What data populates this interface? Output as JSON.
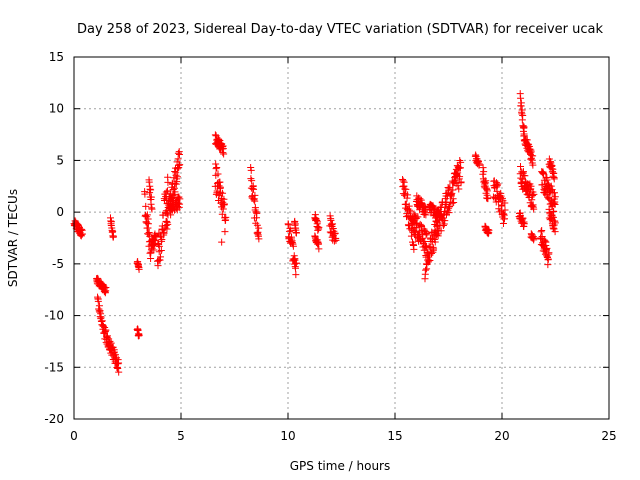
{
  "chart_data": {
    "type": "scatter",
    "title": "Day 258 of 2023, Sidereal Day-to-day VTEC variation (SDTVAR) for receiver ucak",
    "xlabel": "GPS time / hours",
    "ylabel": "SDTVAR / TECUs",
    "xlim": [
      0,
      25
    ],
    "ylim": [
      -20,
      15
    ],
    "xticks": [
      0,
      5,
      10,
      15,
      20,
      25
    ],
    "yticks": [
      -20,
      -15,
      -10,
      -5,
      0,
      5,
      10,
      15
    ],
    "grid": true,
    "marker": "+",
    "color": "#ff0000",
    "segments": [
      {
        "x": [
          0.0,
          0.4
        ],
        "y": [
          -1.0,
          -2.2
        ],
        "spread": 0.4
      },
      {
        "x": [
          1.05,
          1.2
        ],
        "y": [
          -6.5,
          -7.0
        ],
        "spread": 0.3
      },
      {
        "x": [
          1.2,
          1.5
        ],
        "y": [
          -7.0,
          -7.6
        ],
        "spread": 0.3
      },
      {
        "x": [
          1.1,
          1.4
        ],
        "y": [
          -8.5,
          -11.5
        ],
        "spread": 0.5
      },
      {
        "x": [
          1.4,
          2.1
        ],
        "y": [
          -11.5,
          -15.0
        ],
        "spread": 0.6
      },
      {
        "x": [
          1.7,
          1.85
        ],
        "y": [
          -0.5,
          -2.6
        ],
        "spread": 0.3
      },
      {
        "x": [
          2.95,
          3.05
        ],
        "y": [
          -4.8,
          -5.4
        ],
        "spread": 0.2
      },
      {
        "x": [
          2.95,
          3.05
        ],
        "y": [
          -11.2,
          -12.2
        ],
        "spread": 0.3
      },
      {
        "x": [
          3.3,
          3.6
        ],
        "y": [
          1.2,
          -4.0
        ],
        "spread": 1.2
      },
      {
        "x": [
          3.5,
          3.65
        ],
        "y": [
          3.0,
          0.5
        ],
        "spread": 0.6
      },
      {
        "x": [
          3.6,
          3.85
        ],
        "y": [
          -3.5,
          -2.5
        ],
        "spread": 0.7
      },
      {
        "x": [
          3.9,
          4.4
        ],
        "y": [
          -4.5,
          2.0
        ],
        "spread": 1.8
      },
      {
        "x": [
          4.3,
          4.95
        ],
        "y": [
          -1.0,
          5.2
        ],
        "spread": 1.2
      },
      {
        "x": [
          4.5,
          4.95
        ],
        "y": [
          0.3,
          1.0
        ],
        "spread": 0.6
      },
      {
        "x": [
          6.6,
          7.0
        ],
        "y": [
          7.0,
          6.0
        ],
        "spread": 0.5
      },
      {
        "x": [
          6.6,
          7.1
        ],
        "y": [
          3.5,
          -1.0
        ],
        "spread": 1.5
      },
      {
        "x": [
          8.25,
          8.65
        ],
        "y": [
          3.6,
          -2.8
        ],
        "spread": 1.3
      },
      {
        "x": [
          10.0,
          10.4
        ],
        "y": [
          -1.3,
          -5.8
        ],
        "spread": 1.0
      },
      {
        "x": [
          10.3,
          10.4
        ],
        "y": [
          -1.0,
          -2.0
        ],
        "spread": 0.4
      },
      {
        "x": [
          11.25,
          11.45
        ],
        "y": [
          -0.2,
          -1.8
        ],
        "spread": 0.5
      },
      {
        "x": [
          11.25,
          11.45
        ],
        "y": [
          -2.5,
          -3.3
        ],
        "spread": 0.3
      },
      {
        "x": [
          11.95,
          12.25
        ],
        "y": [
          -1.0,
          -3.0
        ],
        "spread": 0.8
      },
      {
        "x": [
          15.35,
          15.9
        ],
        "y": [
          2.5,
          -2.5
        ],
        "spread": 1.4
      },
      {
        "x": [
          15.8,
          16.5
        ],
        "y": [
          -0.8,
          -3.0
        ],
        "spread": 1.2
      },
      {
        "x": [
          16.0,
          16.45
        ],
        "y": [
          1.2,
          0.0
        ],
        "spread": 0.6
      },
      {
        "x": [
          16.4,
          17.0
        ],
        "y": [
          -5.8,
          -0.8
        ],
        "spread": 1.3
      },
      {
        "x": [
          16.6,
          17.1
        ],
        "y": [
          0.5,
          -0.5
        ],
        "spread": 0.5
      },
      {
        "x": [
          16.95,
          18.1
        ],
        "y": [
          -1.5,
          4.0
        ],
        "spread": 1.4
      },
      {
        "x": [
          18.75,
          18.95
        ],
        "y": [
          5.3,
          4.6
        ],
        "spread": 0.3
      },
      {
        "x": [
          19.1,
          19.35
        ],
        "y": [
          3.8,
          1.2
        ],
        "spread": 0.7
      },
      {
        "x": [
          19.2,
          19.4
        ],
        "y": [
          -1.4,
          -2.0
        ],
        "spread": 0.3
      },
      {
        "x": [
          19.6,
          20.15
        ],
        "y": [
          2.6,
          -0.4
        ],
        "spread": 1.3
      },
      {
        "x": [
          20.85,
          21.05
        ],
        "y": [
          11.1,
          7.5
        ],
        "spread": 0.5
      },
      {
        "x": [
          21.0,
          21.45
        ],
        "y": [
          7.5,
          5.0
        ],
        "spread": 0.5
      },
      {
        "x": [
          20.85,
          21.5
        ],
        "y": [
          3.6,
          1.0
        ],
        "spread": 1.0
      },
      {
        "x": [
          20.8,
          21.05
        ],
        "y": [
          -0.2,
          -1.2
        ],
        "spread": 0.4
      },
      {
        "x": [
          21.35,
          21.5
        ],
        "y": [
          -2.2,
          -2.6
        ],
        "spread": 0.2
      },
      {
        "x": [
          21.8,
          22.2
        ],
        "y": [
          -2.0,
          -4.7
        ],
        "spread": 0.9
      },
      {
        "x": [
          21.85,
          22.5
        ],
        "y": [
          3.2,
          0.8
        ],
        "spread": 1.1
      },
      {
        "x": [
          22.2,
          22.45
        ],
        "y": [
          5.0,
          3.5
        ],
        "spread": 0.4
      },
      {
        "x": [
          22.2,
          22.5
        ],
        "y": [
          0.0,
          -1.5
        ],
        "spread": 0.6
      }
    ],
    "isolated_points": [
      {
        "x": 6.9,
        "y": -2.9
      }
    ]
  }
}
